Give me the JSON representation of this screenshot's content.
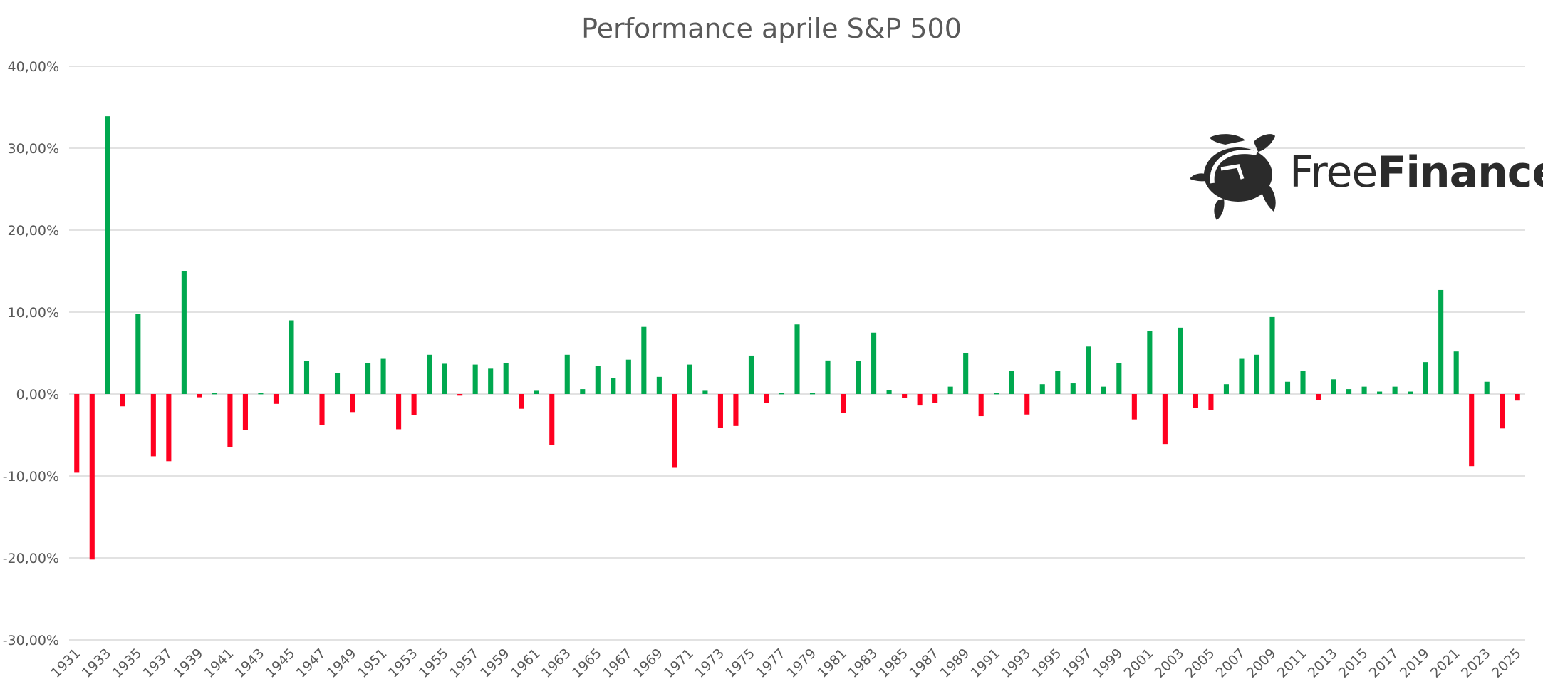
{
  "chart_data": {
    "type": "bar",
    "title": "Performance aprile S&P 500",
    "xlabel": "",
    "ylabel": "",
    "ylim": [
      -30,
      40
    ],
    "yticks": [
      40,
      30,
      20,
      10,
      0,
      -10,
      -20,
      -30
    ],
    "ytick_labels": [
      "40,00%",
      "30,00%",
      "20,00%",
      "10,00%",
      "0,00%",
      "-10,00%",
      "-20,00%",
      "-30,00%"
    ],
    "grid": true,
    "legend": "none",
    "colors": {
      "positive": "#00A84F",
      "negative": "#FF0020",
      "grid": "#D9D9D9"
    },
    "categories": [
      1931,
      1932,
      1933,
      1934,
      1935,
      1936,
      1937,
      1938,
      1939,
      1940,
      1941,
      1942,
      1943,
      1944,
      1945,
      1946,
      1947,
      1948,
      1949,
      1950,
      1951,
      1952,
      1953,
      1954,
      1955,
      1956,
      1957,
      1958,
      1959,
      1960,
      1961,
      1962,
      1963,
      1964,
      1965,
      1966,
      1967,
      1968,
      1969,
      1970,
      1971,
      1972,
      1973,
      1974,
      1975,
      1976,
      1977,
      1978,
      1979,
      1980,
      1981,
      1982,
      1983,
      1984,
      1985,
      1986,
      1987,
      1988,
      1989,
      1990,
      1991,
      1992,
      1993,
      1994,
      1995,
      1996,
      1997,
      1998,
      1999,
      2000,
      2001,
      2002,
      2003,
      2004,
      2005,
      2006,
      2007,
      2008,
      2009,
      2010,
      2011,
      2012,
      2013,
      2014,
      2015,
      2016,
      2017,
      2018,
      2019,
      2020,
      2021,
      2022,
      2023,
      2024,
      2025
    ],
    "values": [
      -9.6,
      -20.2,
      33.9,
      -1.5,
      9.8,
      -7.6,
      -8.2,
      15.0,
      -0.4,
      0.1,
      -6.5,
      -4.4,
      0.1,
      -1.2,
      9.0,
      4.0,
      -3.8,
      2.6,
      -2.2,
      3.8,
      4.3,
      -4.3,
      -2.6,
      4.8,
      3.7,
      -0.2,
      3.6,
      3.1,
      3.8,
      -1.8,
      0.4,
      -6.2,
      4.8,
      0.6,
      3.4,
      2.0,
      4.2,
      8.2,
      2.1,
      -9.0,
      3.6,
      0.4,
      -4.1,
      -3.9,
      4.7,
      -1.1,
      0.1,
      8.5,
      0.1,
      4.1,
      -2.3,
      4.0,
      7.5,
      0.5,
      -0.5,
      -1.4,
      -1.1,
      0.9,
      5.0,
      -2.7,
      0.1,
      2.8,
      -2.5,
      1.2,
      2.8,
      1.3,
      5.8,
      0.9,
      3.8,
      -3.1,
      7.7,
      -6.1,
      8.1,
      -1.7,
      -2.0,
      1.2,
      4.3,
      4.8,
      9.4,
      1.5,
      2.8,
      -0.7,
      1.8,
      0.6,
      0.9,
      0.3,
      0.9,
      0.3,
      3.9,
      12.7,
      5.2,
      -8.8,
      1.5,
      -4.2,
      -0.8
    ],
    "xtick_labels": [
      "1931",
      "1933",
      "1935",
      "1937",
      "1939",
      "1941",
      "1943",
      "1945",
      "1947",
      "1949",
      "1951",
      "1953",
      "1955",
      "1957",
      "1959",
      "1961",
      "1963",
      "1965",
      "1967",
      "1969",
      "1971",
      "1973",
      "1975",
      "1977",
      "1979",
      "1981",
      "1983",
      "1985",
      "1987",
      "1989",
      "1991",
      "1993",
      "1995",
      "1997",
      "1999",
      "2001",
      "2003",
      "2005",
      "2007",
      "2009",
      "2011",
      "2013",
      "2015",
      "2017",
      "2019",
      "2021",
      "2023",
      "2025"
    ]
  },
  "logo": {
    "text_light": "Free",
    "text_bold": "Finance"
  }
}
